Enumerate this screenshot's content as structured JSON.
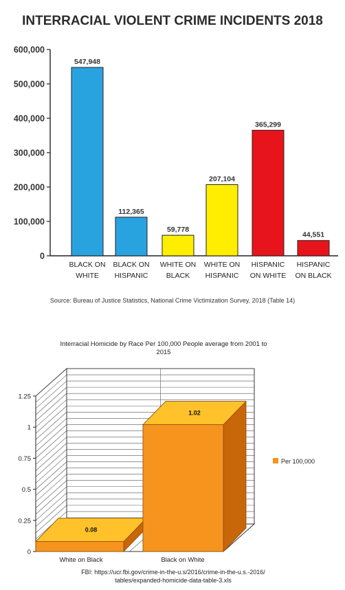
{
  "chart_data": [
    {
      "type": "bar",
      "title": "INTERRACIAL VIOLENT CRIME INCIDENTS 2018",
      "categories": [
        [
          "BLACK ON",
          "WHITE"
        ],
        [
          "BLACK ON",
          "HISPANIC"
        ],
        [
          "WHITE ON",
          "BLACK"
        ],
        [
          "WHITE ON",
          "HISPANIC"
        ],
        [
          "HISPANIC",
          "ON WHITE"
        ],
        [
          "HISPANIC",
          "ON BLACK"
        ]
      ],
      "values": [
        547948,
        112365,
        59778,
        207104,
        365299,
        44551
      ],
      "value_labels": [
        "547,948",
        "112,365",
        "59,778",
        "207,104",
        "365,299",
        "44,551"
      ],
      "bar_colors": [
        "#29a3e0",
        "#29a3e0",
        "#ffee00",
        "#ffee00",
        "#e8141c",
        "#e8141c"
      ],
      "ylim": [
        0,
        600000
      ],
      "yticks": [
        "0",
        "100,000",
        "200,000",
        "300,000",
        "400,000",
        "500,000",
        "600,000"
      ],
      "grid": false,
      "source": "Source: Bureau of Justice Statistics, National Crime Victimization Survey, 2018 (Table 14)"
    },
    {
      "type": "bar",
      "title": [
        "Interracial Homicide by Race Per 100,000 People average from 2001 to",
        "2015"
      ],
      "categories": [
        "White on Black",
        "Black on White"
      ],
      "series": [
        {
          "name": "Per 100,000",
          "values": [
            0.08,
            1.02
          ]
        }
      ],
      "value_labels": [
        "0.08",
        "1.02"
      ],
      "ylim": [
        0,
        1.25
      ],
      "yticks": [
        "0",
        "0.25",
        "0.5",
        "0.75",
        "1",
        "1.25"
      ],
      "grid": true,
      "legend": "right",
      "bar_color": "#f7941d",
      "source": [
        "FBI: https://ucr.fbi.gov/crime-in-the-u.s/2016/crime-in-the-u.s.-2016/",
        "tables/expanded-homicide-data-table-3.xls"
      ]
    }
  ]
}
